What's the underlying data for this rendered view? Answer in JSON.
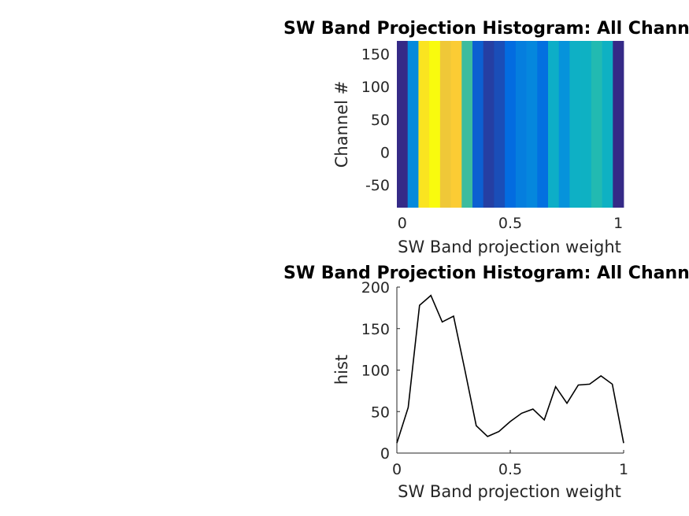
{
  "chart_data": [
    {
      "type": "heatmap",
      "title": "SW Band Projection Histogram: All Channels",
      "xlabel": "SW Band projection weight",
      "ylabel": "Channel #",
      "xlim": [
        -0.025,
        1.025
      ],
      "ylim": [
        -85,
        170
      ],
      "xticks": [
        0,
        0.5,
        1
      ],
      "xtick_labels": [
        "0",
        "0.5",
        "1"
      ],
      "yticks": [
        -50,
        0,
        50,
        100,
        150
      ],
      "ytick_labels": [
        "-50",
        "0",
        "50",
        "100",
        "150"
      ],
      "x": [
        0,
        0.05,
        0.1,
        0.15,
        0.2,
        0.25,
        0.3,
        0.35,
        0.4,
        0.45,
        0.5,
        0.55,
        0.6,
        0.65,
        0.7,
        0.75,
        0.8,
        0.85,
        0.9,
        0.95,
        1
      ],
      "values": [
        12,
        55,
        178,
        190,
        158,
        165,
        100,
        33,
        20,
        26,
        38,
        48,
        53,
        40,
        80,
        60,
        82,
        83,
        93,
        83,
        12
      ],
      "colormap": "parula",
      "grid": false
    },
    {
      "type": "line",
      "title": "SW Band Projection Histogram: All Channels",
      "xlabel": "SW Band projection weight",
      "ylabel": "hist",
      "xlim": [
        0,
        1
      ],
      "ylim": [
        0,
        200
      ],
      "xticks": [
        0,
        0.5,
        1
      ],
      "xtick_labels": [
        "0",
        "0.5",
        "1"
      ],
      "yticks": [
        0,
        50,
        100,
        150,
        200
      ],
      "ytick_labels": [
        "0",
        "50",
        "100",
        "150",
        "200"
      ],
      "x": [
        0,
        0.05,
        0.1,
        0.15,
        0.2,
        0.25,
        0.3,
        0.35,
        0.4,
        0.45,
        0.5,
        0.55,
        0.6,
        0.65,
        0.7,
        0.75,
        0.8,
        0.85,
        0.9,
        0.95,
        1
      ],
      "y": [
        12,
        55,
        178,
        190,
        158,
        165,
        100,
        33,
        20,
        26,
        38,
        48,
        53,
        40,
        80,
        60,
        82,
        83,
        93,
        83,
        12
      ],
      "line_color": "#000000",
      "grid": false
    }
  ]
}
